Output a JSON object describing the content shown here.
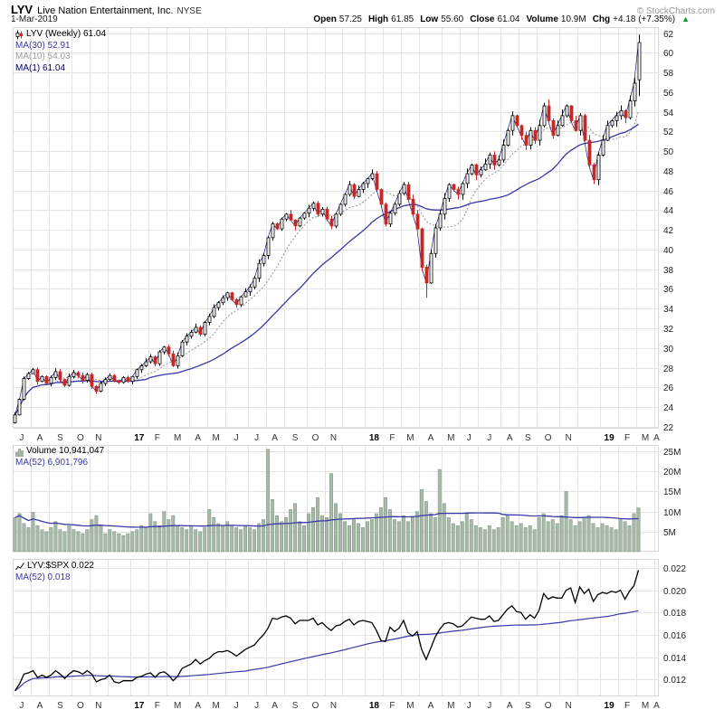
{
  "header": {
    "symbol": "LYV",
    "name": "Live Nation Entertainment, Inc.",
    "exchange": "NYSE",
    "date": "1-Mar-2019",
    "copyright": "© StockCharts.com",
    "quote": [
      {
        "label": "Open",
        "value": "57.25"
      },
      {
        "label": "High",
        "value": "61.85"
      },
      {
        "label": "Low",
        "value": "55.60"
      },
      {
        "label": "Close",
        "value": "61.04"
      },
      {
        "label": "Volume",
        "value": "10.9M"
      },
      {
        "label": "Chg",
        "value": "+4.18 (+7.35%)"
      }
    ],
    "chg_arrow": "▲"
  },
  "legends": {
    "price": {
      "main": "LYV (Weekly) 61.04",
      "ma30": "MA(30) 52.91",
      "ma10": "MA(10) 54.03",
      "ma1": "MA(1) 61.04"
    },
    "volume": {
      "main": "Volume 10,941,047",
      "ma": "MA(52) 6,901,796"
    },
    "ratio": {
      "main": "LYV:$SPX 0.022",
      "ma": "MA(52) 0.018"
    }
  },
  "colors": {
    "ma_blue": "#3838A8",
    "ma_gray": "#9A9A9A",
    "close_line": "#000070",
    "candle_up": "#000000",
    "candle_down": "#C62828",
    "volume_bar": "#A7B9A8",
    "volume_bar_edge": "#7E937F",
    "ratio_line": "#000000",
    "grid": "#E4E4E4",
    "frame": "#D9D9D9",
    "up_arrow": "#009933",
    "axis_text": "#222222"
  },
  "chart_data": [
    {
      "type": "candlestick",
      "title": "LYV (Weekly)",
      "timeframe": "weekly",
      "last_value": 61.04,
      "ylim": [
        22,
        62
      ],
      "y_ticks": [
        62,
        60,
        58,
        56,
        54,
        52,
        50,
        48,
        46,
        44,
        42,
        40,
        38,
        36,
        34,
        32,
        30,
        28,
        26,
        24,
        22
      ],
      "months": [
        {
          "l": "J",
          "w": 4
        },
        {
          "l": "A",
          "w": 4
        },
        {
          "l": "S",
          "w": 5
        },
        {
          "l": "O",
          "w": 4
        },
        {
          "l": "N",
          "w": 4
        },
        {
          "l": "",
          "w": 5
        },
        {
          "l": "17",
          "w": 4,
          "y": true
        },
        {
          "l": "F",
          "w": 4
        },
        {
          "l": "M",
          "w": 5
        },
        {
          "l": "A",
          "w": 4
        },
        {
          "l": "M",
          "w": 4
        },
        {
          "l": "J",
          "w": 5
        },
        {
          "l": "J",
          "w": 4
        },
        {
          "l": "A",
          "w": 4
        },
        {
          "l": "S",
          "w": 5
        },
        {
          "l": "O",
          "w": 4
        },
        {
          "l": "N",
          "w": 4
        },
        {
          "l": "",
          "w": 5
        },
        {
          "l": "18",
          "w": 4,
          "y": true
        },
        {
          "l": "F",
          "w": 4
        },
        {
          "l": "M",
          "w": 4
        },
        {
          "l": "A",
          "w": 5
        },
        {
          "l": "M",
          "w": 4
        },
        {
          "l": "J",
          "w": 4
        },
        {
          "l": "J",
          "w": 5
        },
        {
          "l": "A",
          "w": 4
        },
        {
          "l": "S",
          "w": 4
        },
        {
          "l": "O",
          "w": 5
        },
        {
          "l": "N",
          "w": 4
        },
        {
          "l": "",
          "w": 5
        },
        {
          "l": "19",
          "w": 4,
          "y": true
        },
        {
          "l": "F",
          "w": 4
        },
        {
          "l": "M",
          "w": 4
        },
        {
          "l": "A",
          "w": 1
        }
      ],
      "closes": [
        23.2,
        24.8,
        26.9,
        27.4,
        27.8,
        26.6,
        27.1,
        26.4,
        27.0,
        27.6,
        26.8,
        26.2,
        27.1,
        27.5,
        27.2,
        26.7,
        27.3,
        26.1,
        25.6,
        26.4,
        26.8,
        27.2,
        26.7,
        26.5,
        27.0,
        26.6,
        27.1,
        27.8,
        28.2,
        28.6,
        29.1,
        28.4,
        29.6,
        30.1,
        29.4,
        28.2,
        29.2,
        30.6,
        31.2,
        31.6,
        32.1,
        31.4,
        32.6,
        33.2,
        34.1,
        34.6,
        35.1,
        35.6,
        34.9,
        34.4,
        35.2,
        35.7,
        36.2,
        37.1,
        38.6,
        39.4,
        41.2,
        42.6,
        42.1,
        43.1,
        43.6,
        43.0,
        42.4,
        43.2,
        43.7,
        44.2,
        44.7,
        43.6,
        44.1,
        43.1,
        42.4,
        43.6,
        44.6,
        45.6,
        46.6,
        45.4,
        46.1,
        46.7,
        47.2,
        47.7,
        46.1,
        44.6,
        42.6,
        43.7,
        44.6,
        45.7,
        46.6,
        45.1,
        43.6,
        42.1,
        38.2,
        36.6,
        39.6,
        42.2,
        43.6,
        45.2,
        46.6,
        46.1,
        45.6,
        46.7,
        47.7,
        48.6,
        47.6,
        48.1,
        48.7,
        49.6,
        48.6,
        49.1,
        50.6,
        52.1,
        53.6,
        52.6,
        51.6,
        50.6,
        52.1,
        51.1,
        52.6,
        54.6,
        53.1,
        51.6,
        52.6,
        53.6,
        54.6,
        53.1,
        52.1,
        53.6,
        51.1,
        48.6,
        47.1,
        49.6,
        51.1,
        52.6,
        53.1,
        53.6,
        54.1,
        53.4,
        55.1,
        56.9,
        61.04
      ],
      "last_candle": {
        "open": 57.25,
        "high": 61.85,
        "low": 55.6,
        "close": 61.04
      },
      "crash_low_week": 92,
      "crash_low": 35.1,
      "overlays": [
        {
          "name": "MA(30)",
          "period": 30,
          "value": 52.91,
          "style": "solid"
        },
        {
          "name": "MA(10)",
          "period": 10,
          "value": 54.03,
          "style": "dotted"
        },
        {
          "name": "MA(1)",
          "period": 1,
          "value": 61.04,
          "style": "solid"
        }
      ]
    },
    {
      "type": "bar",
      "title": "Volume",
      "current": "10,941,047",
      "unit": "millions",
      "ylim": [
        0,
        26.6
      ],
      "y_ticks": [
        25,
        20,
        15,
        10,
        5
      ],
      "y_tick_suffix": "M",
      "values": [
        8.5,
        9.5,
        7.0,
        6.0,
        9.8,
        6.5,
        5.5,
        5.0,
        6.0,
        7.5,
        5.5,
        5.0,
        6.5,
        5.5,
        5.0,
        4.5,
        5.5,
        8.0,
        9.0,
        6.5,
        4.5,
        5.5,
        5.0,
        4.5,
        4.0,
        4.5,
        5.0,
        5.5,
        6.5,
        6.0,
        9.5,
        7.5,
        6.5,
        10.0,
        8.0,
        9.0,
        6.5,
        6.0,
        5.5,
        6.5,
        5.5,
        5.0,
        6.0,
        10.5,
        8.5,
        7.0,
        6.5,
        7.5,
        6.5,
        6.0,
        5.5,
        6.5,
        6.0,
        5.5,
        7.0,
        8.0,
        25.5,
        13.0,
        9.0,
        7.5,
        8.5,
        10.5,
        12.0,
        7.5,
        6.5,
        9.5,
        11.0,
        13.5,
        9.0,
        8.5,
        19.5,
        12.0,
        9.5,
        7.5,
        6.5,
        8.0,
        7.0,
        6.0,
        7.5,
        8.0,
        9.5,
        11.0,
        13.5,
        10.5,
        8.0,
        7.5,
        9.0,
        7.5,
        8.5,
        10.0,
        15.5,
        12.5,
        9.5,
        8.5,
        20.5,
        12.0,
        8.5,
        7.0,
        6.5,
        7.5,
        9.5,
        8.0,
        6.5,
        6.0,
        5.5,
        6.5,
        5.5,
        6.0,
        8.5,
        9.0,
        7.5,
        6.5,
        7.0,
        6.0,
        6.5,
        5.5,
        8.5,
        9.5,
        7.5,
        8.0,
        7.0,
        9.0,
        15.0,
        8.0,
        6.5,
        7.5,
        8.5,
        9.0,
        7.0,
        6.0,
        7.0,
        6.5,
        6.0,
        5.5,
        8.0,
        7.5,
        6.5,
        9.5,
        10.94
      ],
      "ma": {
        "name": "MA(52)",
        "period": 52,
        "value": "6,901,796"
      }
    },
    {
      "type": "line",
      "title": "LYV:$SPX",
      "current": 0.022,
      "ylim": [
        0.0105,
        0.0228
      ],
      "y_ticks": [
        0.022,
        0.02,
        0.018,
        0.016,
        0.014,
        0.012
      ],
      "values": [
        0.011,
        0.0116,
        0.0125,
        0.0126,
        0.0128,
        0.0122,
        0.0124,
        0.0122,
        0.0124,
        0.0128,
        0.0125,
        0.0121,
        0.0125,
        0.0128,
        0.0127,
        0.0125,
        0.0128,
        0.0125,
        0.0118,
        0.012,
        0.0121,
        0.0124,
        0.0118,
        0.0117,
        0.0119,
        0.0119,
        0.0119,
        0.0122,
        0.0123,
        0.0125,
        0.0126,
        0.0122,
        0.0126,
        0.0127,
        0.0124,
        0.0119,
        0.0123,
        0.013,
        0.0132,
        0.0134,
        0.0138,
        0.0134,
        0.0137,
        0.0139,
        0.0143,
        0.0145,
        0.0145,
        0.0146,
        0.0144,
        0.0141,
        0.0144,
        0.0147,
        0.0149,
        0.0151,
        0.0156,
        0.016,
        0.0166,
        0.0175,
        0.0174,
        0.0176,
        0.0177,
        0.0175,
        0.017,
        0.0173,
        0.0173,
        0.0173,
        0.0175,
        0.0169,
        0.0171,
        0.0167,
        0.0164,
        0.0168,
        0.0169,
        0.0172,
        0.0174,
        0.0169,
        0.0172,
        0.0173,
        0.0172,
        0.0171,
        0.0164,
        0.0155,
        0.0154,
        0.0167,
        0.0163,
        0.0166,
        0.0173,
        0.0162,
        0.0159,
        0.0163,
        0.0147,
        0.0138,
        0.0148,
        0.0158,
        0.0165,
        0.017,
        0.0171,
        0.017,
        0.0167,
        0.0168,
        0.0172,
        0.0176,
        0.0175,
        0.0174,
        0.0174,
        0.0177,
        0.0172,
        0.0173,
        0.0178,
        0.0183,
        0.0186,
        0.0181,
        0.018,
        0.0174,
        0.0178,
        0.0175,
        0.0182,
        0.0197,
        0.0192,
        0.0194,
        0.0193,
        0.0193,
        0.02,
        0.0202,
        0.0189,
        0.0203,
        0.0197,
        0.0201,
        0.019,
        0.0196,
        0.0198,
        0.0197,
        0.0199,
        0.0198,
        0.02,
        0.0192,
        0.0199,
        0.0204,
        0.0218
      ],
      "ma": {
        "name": "MA(52)",
        "period": 52,
        "value": 0.018
      }
    }
  ]
}
